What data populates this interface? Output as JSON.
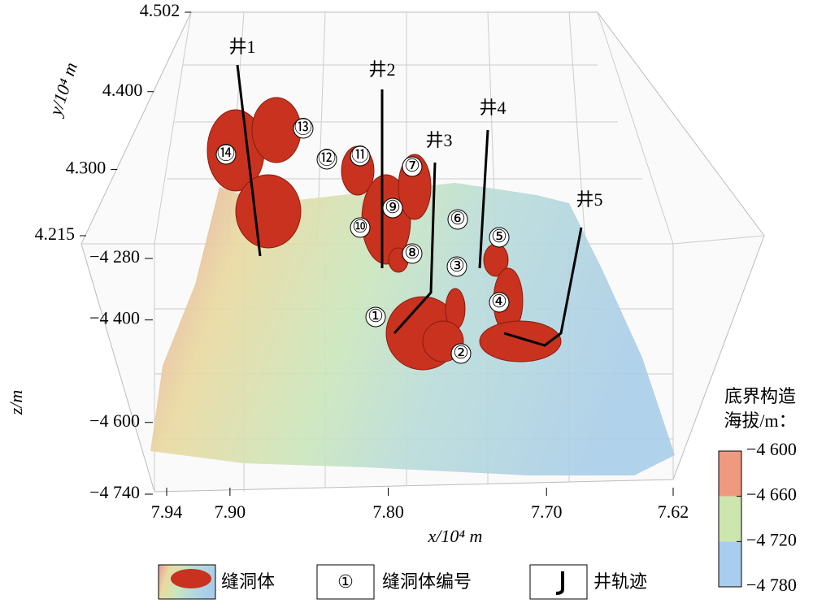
{
  "chart_data": {
    "type": "surface3d",
    "xlabel": "x/10⁴ m",
    "ylabel": "y/10⁴ m",
    "zlabel": "z/m",
    "xlim": [
      7.94,
      7.62
    ],
    "xticks": [
      7.94,
      {
        "value": 7.9,
        "label": "7.90"
      },
      {
        "value": 7.8,
        "label": "7.80"
      },
      {
        "value": 7.7,
        "label": "7.70"
      },
      7.62
    ],
    "ylim": [
      4.215,
      4.502
    ],
    "yticks": [
      4.502,
      {
        "value": 4.4,
        "label": "4.400"
      },
      {
        "value": 4.3,
        "label": "4.300"
      },
      4.215
    ],
    "zlim": [
      -4740,
      -4280
    ],
    "zticks": [
      {
        "value": -4280,
        "label": "−4 280"
      },
      {
        "value": -4400,
        "label": "−4 400"
      },
      {
        "value": -4600,
        "label": "−4 600"
      },
      {
        "value": -4740,
        "label": "−4 740"
      }
    ],
    "wells": [
      "井1",
      "井2",
      "井3",
      "井4",
      "井5"
    ],
    "vugs": [
      "①",
      "②",
      "③",
      "④",
      "⑤",
      "⑥",
      "⑦",
      "⑧",
      "⑨",
      "⑩",
      "⑪",
      "⑫",
      "⑬",
      "⑭"
    ],
    "colorbar": {
      "title": [
        "底界构造",
        "海拔/m："
      ],
      "lim": [
        -4600,
        -4780
      ],
      "ticks": [
        {
          "value": -4600,
          "label": "−4 600"
        },
        {
          "value": -4660,
          "label": "−4 660"
        },
        {
          "value": -4720,
          "label": "−4 720"
        },
        {
          "value": -4780,
          "label": "−4 780"
        }
      ],
      "colors": [
        "#ef9a80",
        "#cde6b0",
        "#a9cdee"
      ]
    },
    "legend": [
      "缝洞体",
      "①",
      "缝洞体编号",
      "井轨迹"
    ]
  }
}
